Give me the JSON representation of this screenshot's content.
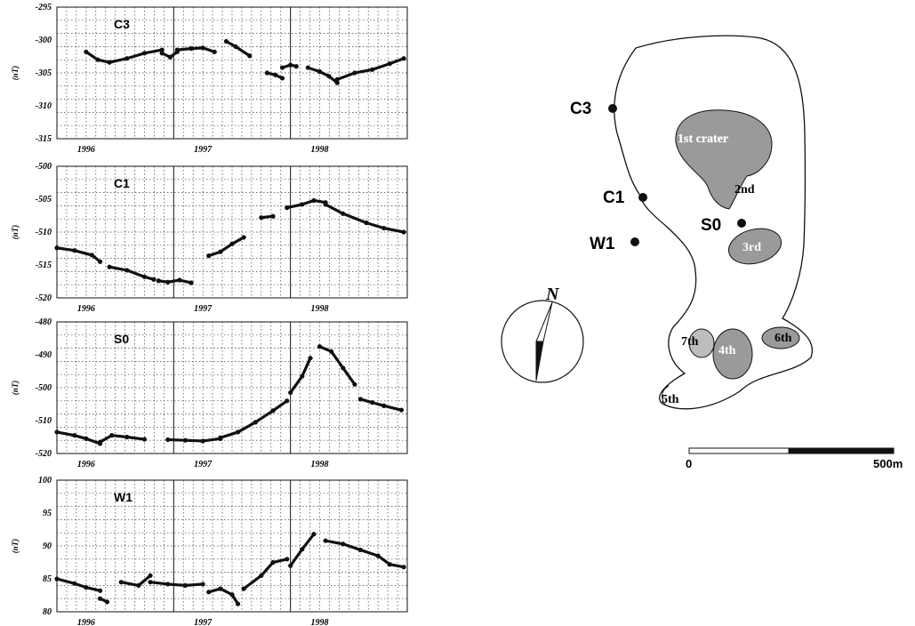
{
  "chart_data": [
    {
      "type": "scatter",
      "panel": "C3",
      "ylabel": "(nT)",
      "ylim": [
        -315,
        -295
      ],
      "yticks": [
        -295,
        -300,
        -305,
        -310,
        -315
      ],
      "xlim": [
        1995.75,
        1998.75
      ],
      "year_dividers": [
        1996.75,
        1997.75
      ],
      "xtick_labels": [
        {
          "x": 1996.0,
          "label": "1996"
        },
        {
          "x": 1997.0,
          "label": "1997"
        },
        {
          "x": 1998.0,
          "label": "1998"
        }
      ],
      "segments": [
        {
          "x": [
            1996.0,
            1996.1,
            1996.2,
            1996.35,
            1996.5,
            1996.65
          ],
          "y": [
            -301.8,
            -303.0,
            -303.4,
            -302.8,
            -302.0,
            -301.5
          ]
        },
        {
          "x": [
            1996.65,
            1996.72,
            1996.78
          ],
          "y": [
            -302.0,
            -302.6,
            -301.8
          ]
        },
        {
          "x": [
            1996.78,
            1996.9,
            1997.0,
            1997.1
          ],
          "y": [
            -301.5,
            -301.3,
            -301.2,
            -301.8
          ]
        },
        {
          "x": [
            1997.2,
            1997.28,
            1997.4
          ],
          "y": [
            -300.2,
            -301.0,
            -302.4
          ]
        },
        {
          "x": [
            1997.55,
            1997.62,
            1997.68
          ],
          "y": [
            -305.0,
            -305.3,
            -305.8
          ]
        },
        {
          "x": [
            1997.68,
            1997.75,
            1997.8
          ],
          "y": [
            -304.2,
            -303.8,
            -304.0
          ]
        },
        {
          "x": [
            1997.9,
            1998.0,
            1998.08,
            1998.15
          ],
          "y": [
            -304.2,
            -304.8,
            -305.5,
            -306.5
          ]
        },
        {
          "x": [
            1998.15,
            1998.3,
            1998.45,
            1998.6,
            1998.72
          ],
          "y": [
            -306.0,
            -305.0,
            -304.5,
            -303.6,
            -302.8
          ]
        }
      ]
    },
    {
      "type": "scatter",
      "panel": "C1",
      "ylabel": "(nT)",
      "ylim": [
        -520,
        -500
      ],
      "yticks": [
        -500,
        -505,
        -510,
        -515,
        -520
      ],
      "xlim": [
        1995.75,
        1998.75
      ],
      "year_dividers": [
        1996.75,
        1997.75
      ],
      "xtick_labels": [
        {
          "x": 1996.0,
          "label": "1996"
        },
        {
          "x": 1997.0,
          "label": "1997"
        },
        {
          "x": 1998.0,
          "label": "1998"
        }
      ],
      "segments": [
        {
          "x": [
            1995.75,
            1995.9,
            1996.05,
            1996.12
          ],
          "y": [
            -512.4,
            -512.8,
            -513.5,
            -514.5
          ]
        },
        {
          "x": [
            1996.2,
            1996.35,
            1996.5,
            1996.58
          ],
          "y": [
            -515.3,
            -515.8,
            -516.8,
            -517.2
          ]
        },
        {
          "x": [
            1996.62,
            1996.7,
            1996.8,
            1996.9
          ],
          "y": [
            -517.4,
            -517.6,
            -517.3,
            -517.7
          ]
        },
        {
          "x": [
            1997.05,
            1997.15,
            1997.25,
            1997.35
          ],
          "y": [
            -513.6,
            -513.0,
            -511.8,
            -510.8
          ]
        },
        {
          "x": [
            1997.5,
            1997.6
          ],
          "y": [
            -507.8,
            -507.6
          ]
        },
        {
          "x": [
            1997.72,
            1997.85,
            1997.95,
            1998.05
          ],
          "y": [
            -506.3,
            -505.8,
            -505.2,
            -505.5
          ]
        },
        {
          "x": [
            1998.05,
            1998.2,
            1998.4,
            1998.55,
            1998.72
          ],
          "y": [
            -505.8,
            -507.2,
            -508.6,
            -509.4,
            -510.0
          ]
        }
      ]
    },
    {
      "type": "scatter",
      "panel": "S0",
      "ylabel": "(nT)",
      "ylim": [
        -520,
        -480
      ],
      "yticks": [
        -480,
        -490,
        -500,
        -510,
        -520
      ],
      "xlim": [
        1995.75,
        1998.75
      ],
      "year_dividers": [
        1996.75,
        1997.75
      ],
      "xtick_labels": [
        {
          "x": 1996.0,
          "label": "1996"
        },
        {
          "x": 1997.0,
          "label": "1997"
        },
        {
          "x": 1998.0,
          "label": "1998"
        }
      ],
      "segments": [
        {
          "x": [
            1995.75,
            1995.9,
            1996.0,
            1996.12
          ],
          "y": [
            -513.5,
            -514.5,
            -515.5,
            -517.0
          ]
        },
        {
          "x": [
            1996.12,
            1996.22,
            1996.35,
            1996.5
          ],
          "y": [
            -516.5,
            -514.5,
            -515.0,
            -515.7
          ]
        },
        {
          "x": [
            1996.7,
            1996.85,
            1997.0,
            1997.15
          ],
          "y": [
            -515.8,
            -516.0,
            -516.2,
            -515.5
          ]
        },
        {
          "x": [
            1997.15,
            1997.3,
            1997.45,
            1997.6,
            1997.72
          ],
          "y": [
            -515.2,
            -513.5,
            -510.5,
            -507.0,
            -504.0
          ]
        },
        {
          "x": [
            1997.75,
            1997.85,
            1997.92
          ],
          "y": [
            -501.5,
            -496.5,
            -491.0
          ]
        },
        {
          "x": [
            1998.0,
            1998.1,
            1998.2,
            1998.3
          ],
          "y": [
            -487.5,
            -489.0,
            -494.0,
            -499.0
          ]
        },
        {
          "x": [
            1998.35,
            1998.45,
            1998.55,
            1998.7
          ],
          "y": [
            -503.5,
            -504.5,
            -505.5,
            -506.8
          ]
        }
      ]
    },
    {
      "type": "scatter",
      "panel": "W1",
      "ylabel": "(nT)",
      "ylim": [
        80,
        100
      ],
      "yticks": [
        100,
        95,
        90,
        85,
        80
      ],
      "xlim": [
        1995.75,
        1998.75
      ],
      "year_dividers": [
        1996.75,
        1997.75
      ],
      "xtick_labels": [
        {
          "x": 1996.0,
          "label": "1996"
        },
        {
          "x": 1997.0,
          "label": "1997"
        },
        {
          "x": 1998.0,
          "label": "1998"
        }
      ],
      "segments": [
        {
          "x": [
            1995.75,
            1995.9,
            1996.0,
            1996.12
          ],
          "y": [
            85.0,
            84.3,
            83.7,
            83.2
          ]
        },
        {
          "x": [
            1996.12,
            1996.18
          ],
          "y": [
            82.0,
            81.5
          ]
        },
        {
          "x": [
            1996.3,
            1996.45,
            1996.55
          ],
          "y": [
            84.5,
            84.0,
            85.5
          ]
        },
        {
          "x": [
            1996.55,
            1996.7,
            1996.85,
            1997.0
          ],
          "y": [
            84.5,
            84.2,
            84.0,
            84.2
          ]
        },
        {
          "x": [
            1997.05,
            1997.15,
            1997.25,
            1997.3
          ],
          "y": [
            83.0,
            83.5,
            82.6,
            81.2
          ]
        },
        {
          "x": [
            1997.35,
            1997.5,
            1997.6,
            1997.72
          ],
          "y": [
            83.5,
            85.5,
            87.5,
            88.0
          ]
        },
        {
          "x": [
            1997.75,
            1997.85,
            1997.95
          ],
          "y": [
            87.0,
            89.5,
            91.8
          ]
        },
        {
          "x": [
            1998.05,
            1998.2,
            1998.35,
            1998.5,
            1998.6,
            1998.72
          ],
          "y": [
            90.8,
            90.3,
            89.4,
            88.5,
            87.2,
            86.8
          ]
        }
      ]
    }
  ],
  "map": {
    "stations": [
      "C3",
      "C1",
      "S0",
      "W1"
    ],
    "craters": [
      "1st crater",
      "2nd",
      "3rd",
      "4th",
      "5th",
      "6th",
      "7th"
    ],
    "north_label": "N",
    "scale": {
      "start_label": "0",
      "end_label": "500m"
    }
  }
}
